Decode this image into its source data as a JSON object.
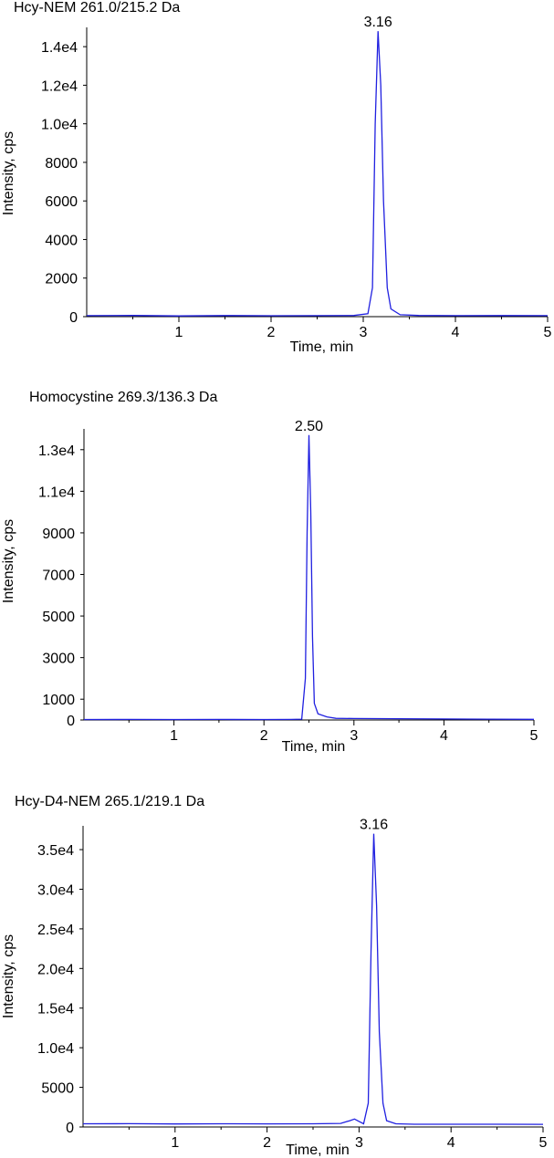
{
  "chart_data": [
    {
      "type": "line",
      "title": "Hcy-NEM 261.0/215.2 Da",
      "xlabel": "Time, min",
      "ylabel": "Intensity, cps",
      "xlim": [
        0,
        5
      ],
      "ylim": [
        0,
        15000
      ],
      "xticks": [
        "1",
        "2",
        "3",
        "4",
        "5"
      ],
      "yticks": [
        "0",
        "2000",
        "4000",
        "6000",
        "8000",
        "1.0e4",
        "1.2e4",
        "1.4e4"
      ],
      "ytick_values": [
        0,
        2000,
        4000,
        6000,
        8000,
        10000,
        12000,
        14000
      ],
      "peak_label": "3.16",
      "color": "#2020e0",
      "series": [
        {
          "x": [
            0,
            0.5,
            1.0,
            1.5,
            2.0,
            2.5,
            2.9,
            3.05,
            3.1,
            3.13,
            3.16,
            3.19,
            3.22,
            3.26,
            3.3,
            3.4,
            3.6,
            4.0,
            4.5,
            5.0
          ],
          "values": [
            50,
            60,
            40,
            55,
            45,
            50,
            60,
            150,
            1500,
            10000,
            14800,
            12000,
            6000,
            1500,
            400,
            100,
            60,
            50,
            55,
            50
          ]
        }
      ]
    },
    {
      "type": "line",
      "title": "Homocystine 269.3/136.3 Da",
      "xlabel": "Time, min",
      "ylabel": "Intensity, cps",
      "xlim": [
        0,
        5
      ],
      "ylim": [
        0,
        14000
      ],
      "xticks": [
        "1",
        "2",
        "3",
        "4",
        "5"
      ],
      "yticks": [
        "0",
        "1000",
        "3000",
        "5000",
        "7000",
        "9000",
        "1.1e4",
        "1.3e4"
      ],
      "ytick_values": [
        0,
        1000,
        3000,
        5000,
        7000,
        9000,
        11000,
        13000
      ],
      "peak_label": "2.50",
      "color": "#2020e0",
      "series": [
        {
          "x": [
            0,
            0.5,
            1.0,
            1.5,
            2.0,
            2.3,
            2.42,
            2.46,
            2.48,
            2.5,
            2.52,
            2.54,
            2.56,
            2.6,
            2.7,
            2.8,
            3.0,
            3.5,
            4.0,
            4.5,
            5.0
          ],
          "values": [
            20,
            25,
            20,
            25,
            20,
            25,
            40,
            2000,
            9000,
            13700,
            10000,
            4000,
            800,
            300,
            150,
            80,
            70,
            60,
            50,
            40,
            30
          ]
        }
      ]
    },
    {
      "type": "line",
      "title": "Hcy-D4-NEM 265.1/219.1 Da",
      "xlabel": "Time, min",
      "ylabel": "Intensity, cps",
      "xlim": [
        0,
        5
      ],
      "ylim": [
        0,
        38000
      ],
      "xticks": [
        "1",
        "2",
        "3",
        "4",
        "5"
      ],
      "yticks": [
        "0",
        "5000",
        "1.0e4",
        "1.5e4",
        "2.0e4",
        "2.5e4",
        "3.0e4",
        "3.5e4"
      ],
      "ytick_values": [
        0,
        5000,
        10000,
        15000,
        20000,
        25000,
        30000,
        35000
      ],
      "peak_label": "3.16",
      "color": "#2020e0",
      "series": [
        {
          "x": [
            0,
            0.5,
            1.0,
            1.5,
            2.0,
            2.5,
            2.8,
            2.9,
            2.95,
            3.0,
            3.05,
            3.1,
            3.13,
            3.16,
            3.19,
            3.22,
            3.26,
            3.3,
            3.4,
            3.6,
            4.0,
            4.5,
            5.0
          ],
          "values": [
            400,
            420,
            380,
            400,
            390,
            400,
            450,
            800,
            1000,
            700,
            400,
            3000,
            22000,
            37000,
            28000,
            12000,
            3000,
            800,
            400,
            350,
            350,
            340,
            330
          ]
        }
      ]
    }
  ]
}
